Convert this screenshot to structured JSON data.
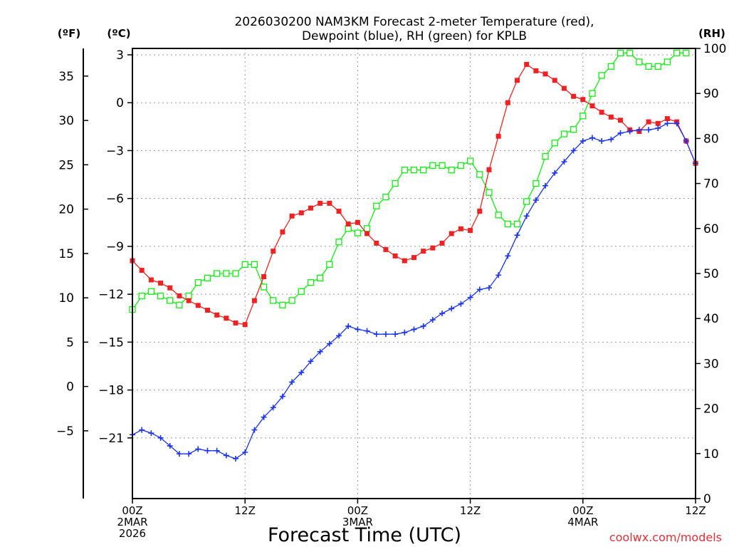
{
  "chart_data": {
    "type": "line",
    "title_line1": "2026030200 NAM3KM Forecast 2-meter Temperature (red),",
    "title_line2": "Dewpoint (blue), RH (green) for KPLB",
    "xlabel": "Forecast Time (UTC)",
    "watermark": "coolwx.com/models",
    "unit_labels": {
      "fahrenheit": "(ºF)",
      "celsius": "(ºC)",
      "rh": "(RH)"
    },
    "x_range_hours": [
      0,
      60
    ],
    "celsius_range": [
      -24.8,
      3.4
    ],
    "rh_range": [
      0,
      100
    ],
    "x_ticks": [
      {
        "hour": 0,
        "line1": "00Z",
        "line2": "2MAR",
        "line3": "2026"
      },
      {
        "hour": 12,
        "line1": "12Z",
        "line2": "",
        "line3": ""
      },
      {
        "hour": 24,
        "line1": "00Z",
        "line2": "3MAR",
        "line3": ""
      },
      {
        "hour": 36,
        "line1": "12Z",
        "line2": "",
        "line3": ""
      },
      {
        "hour": 48,
        "line1": "00Z",
        "line2": "4MAR",
        "line3": ""
      },
      {
        "hour": 60,
        "line1": "12Z",
        "line2": "",
        "line3": ""
      }
    ],
    "celsius_ticks": [
      {
        "value": 3,
        "label": "3"
      },
      {
        "value": 0,
        "label": "0"
      },
      {
        "value": -3,
        "label": "−3"
      },
      {
        "value": -6,
        "label": "−6"
      },
      {
        "value": -9,
        "label": "−9"
      },
      {
        "value": -12,
        "label": "−12"
      },
      {
        "value": -15,
        "label": "−15"
      },
      {
        "value": -18,
        "label": "−18"
      },
      {
        "value": -21,
        "label": "−21"
      }
    ],
    "fahrenheit_ticks": [
      {
        "value": 35,
        "label": "35"
      },
      {
        "value": 30,
        "label": "30"
      },
      {
        "value": 25,
        "label": "25"
      },
      {
        "value": 20,
        "label": "20"
      },
      {
        "value": 15,
        "label": "15"
      },
      {
        "value": 10,
        "label": "10"
      },
      {
        "value": 5,
        "label": "5"
      },
      {
        "value": 0,
        "label": "0"
      },
      {
        "value": -5,
        "label": "−5"
      }
    ],
    "rh_ticks": [
      {
        "value": 100,
        "label": "100"
      },
      {
        "value": 90,
        "label": "90"
      },
      {
        "value": 80,
        "label": "80"
      },
      {
        "value": 70,
        "label": "70"
      },
      {
        "value": 60,
        "label": "60"
      },
      {
        "value": 50,
        "label": "50"
      },
      {
        "value": 40,
        "label": "40"
      },
      {
        "value": 30,
        "label": "30"
      },
      {
        "value": 20,
        "label": "20"
      },
      {
        "value": 10,
        "label": "10"
      },
      {
        "value": 0,
        "label": "0"
      }
    ],
    "series": [
      {
        "name": "2-meter Temperature",
        "color": "#ee2222",
        "marker": "filled-square",
        "axis": "celsius",
        "x": [
          0,
          1,
          2,
          3,
          4,
          5,
          6,
          7,
          8,
          9,
          10,
          11,
          12,
          13,
          14,
          15,
          16,
          17,
          18,
          19,
          20,
          21,
          22,
          23,
          24,
          25,
          26,
          27,
          28,
          29,
          30,
          31,
          32,
          33,
          34,
          35,
          36,
          37,
          38,
          39,
          40,
          41,
          42,
          43,
          44,
          45,
          46,
          47,
          48,
          49,
          50,
          51,
          52,
          53,
          54,
          55,
          56,
          57,
          58,
          59,
          60
        ],
        "values": [
          -9.9,
          -10.5,
          -11.1,
          -11.3,
          -11.6,
          -12.1,
          -12.4,
          -12.7,
          -13.0,
          -13.3,
          -13.5,
          -13.8,
          -13.9,
          -12.4,
          -10.9,
          -9.3,
          -8.1,
          -7.1,
          -6.9,
          -6.6,
          -6.3,
          -6.3,
          -6.8,
          -7.6,
          -7.5,
          -8.2,
          -8.8,
          -9.2,
          -9.6,
          -9.9,
          -9.7,
          -9.3,
          -9.1,
          -8.8,
          -8.2,
          -7.9,
          -8.0,
          -6.8,
          -4.2,
          -2.1,
          0.0,
          1.4,
          2.4,
          2.0,
          1.8,
          1.4,
          0.9,
          0.4,
          0.2,
          -0.2,
          -0.6,
          -0.9,
          -1.1,
          -1.7,
          -1.8,
          -1.2,
          -1.3,
          -1.0,
          -1.2,
          -2.4,
          -3.8
        ]
      },
      {
        "name": "Dewpoint",
        "color": "#1a33ee",
        "marker": "plus",
        "axis": "celsius",
        "x": [
          0,
          1,
          2,
          3,
          4,
          5,
          6,
          7,
          8,
          9,
          10,
          11,
          12,
          13,
          14,
          15,
          16,
          17,
          18,
          19,
          20,
          21,
          22,
          23,
          24,
          25,
          26,
          27,
          28,
          29,
          30,
          31,
          32,
          33,
          34,
          35,
          36,
          37,
          38,
          39,
          40,
          41,
          42,
          43,
          44,
          45,
          46,
          47,
          48,
          49,
          50,
          51,
          52,
          53,
          54,
          55,
          56,
          57,
          58,
          59,
          60
        ],
        "values": [
          -20.8,
          -20.5,
          -20.7,
          -21.0,
          -21.5,
          -22.0,
          -22.0,
          -21.7,
          -21.8,
          -21.8,
          -22.1,
          -22.3,
          -21.9,
          -20.5,
          -19.7,
          -19.1,
          -18.4,
          -17.5,
          -16.9,
          -16.2,
          -15.6,
          -15.1,
          -14.6,
          -14.0,
          -14.2,
          -14.3,
          -14.5,
          -14.5,
          -14.5,
          -14.4,
          -14.2,
          -14.0,
          -13.6,
          -13.2,
          -12.9,
          -12.6,
          -12.2,
          -11.7,
          -11.6,
          -10.8,
          -9.6,
          -8.3,
          -7.1,
          -6.1,
          -5.2,
          -4.4,
          -3.7,
          -3.0,
          -2.4,
          -2.2,
          -2.4,
          -2.3,
          -1.9,
          -1.8,
          -1.7,
          -1.7,
          -1.6,
          -1.3,
          -1.3,
          -2.4,
          -3.8
        ]
      },
      {
        "name": "RH",
        "color": "#11ee11",
        "marker": "open-square",
        "axis": "rh",
        "x": [
          0,
          1,
          2,
          3,
          4,
          5,
          6,
          7,
          8,
          9,
          10,
          11,
          12,
          13,
          14,
          15,
          16,
          17,
          18,
          19,
          20,
          21,
          22,
          23,
          24,
          25,
          26,
          27,
          28,
          29,
          30,
          31,
          32,
          33,
          34,
          35,
          36,
          37,
          38,
          39,
          40,
          41,
          42,
          43,
          44,
          45,
          46,
          47,
          48,
          49,
          50,
          51,
          52,
          53,
          54,
          55,
          56,
          57,
          58,
          59,
          60
        ],
        "values": [
          42,
          45,
          46,
          45,
          44,
          43,
          45,
          48,
          49,
          50,
          50,
          50,
          52,
          52,
          47,
          44,
          43,
          44,
          46,
          48,
          49,
          52,
          57,
          60,
          59,
          60,
          65,
          67,
          70,
          73,
          73,
          73,
          74,
          74,
          73,
          74,
          75,
          72,
          68,
          63,
          61,
          61,
          66,
          70,
          76,
          79,
          81,
          82,
          85,
          90,
          94,
          96,
          99,
          99,
          97,
          96,
          96,
          97,
          99,
          99,
          null
        ]
      }
    ]
  }
}
